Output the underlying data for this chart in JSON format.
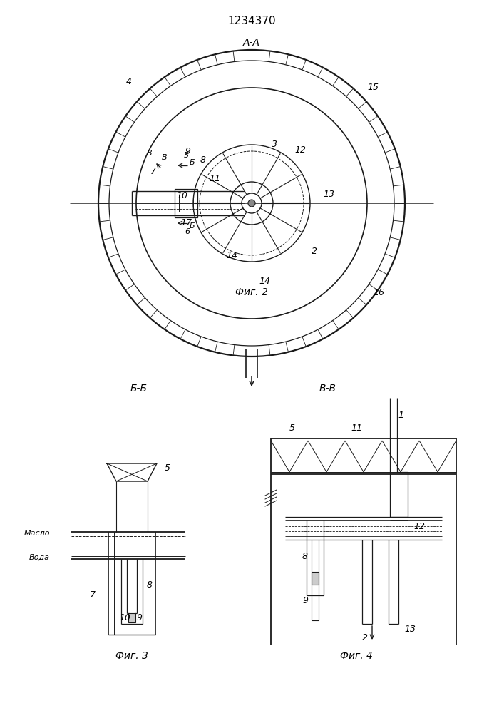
{
  "title": "1234370",
  "fig2_label": "А-А",
  "fig2_caption": "Фиг. 2",
  "fig3_caption": "Фиг. 3",
  "fig4_caption": "Фиг. 4",
  "fig3_section": "Б-Б",
  "fig4_section": "В-В",
  "bg_color": "#ffffff",
  "line_color": "#1a1a1a",
  "lw": 1.0
}
